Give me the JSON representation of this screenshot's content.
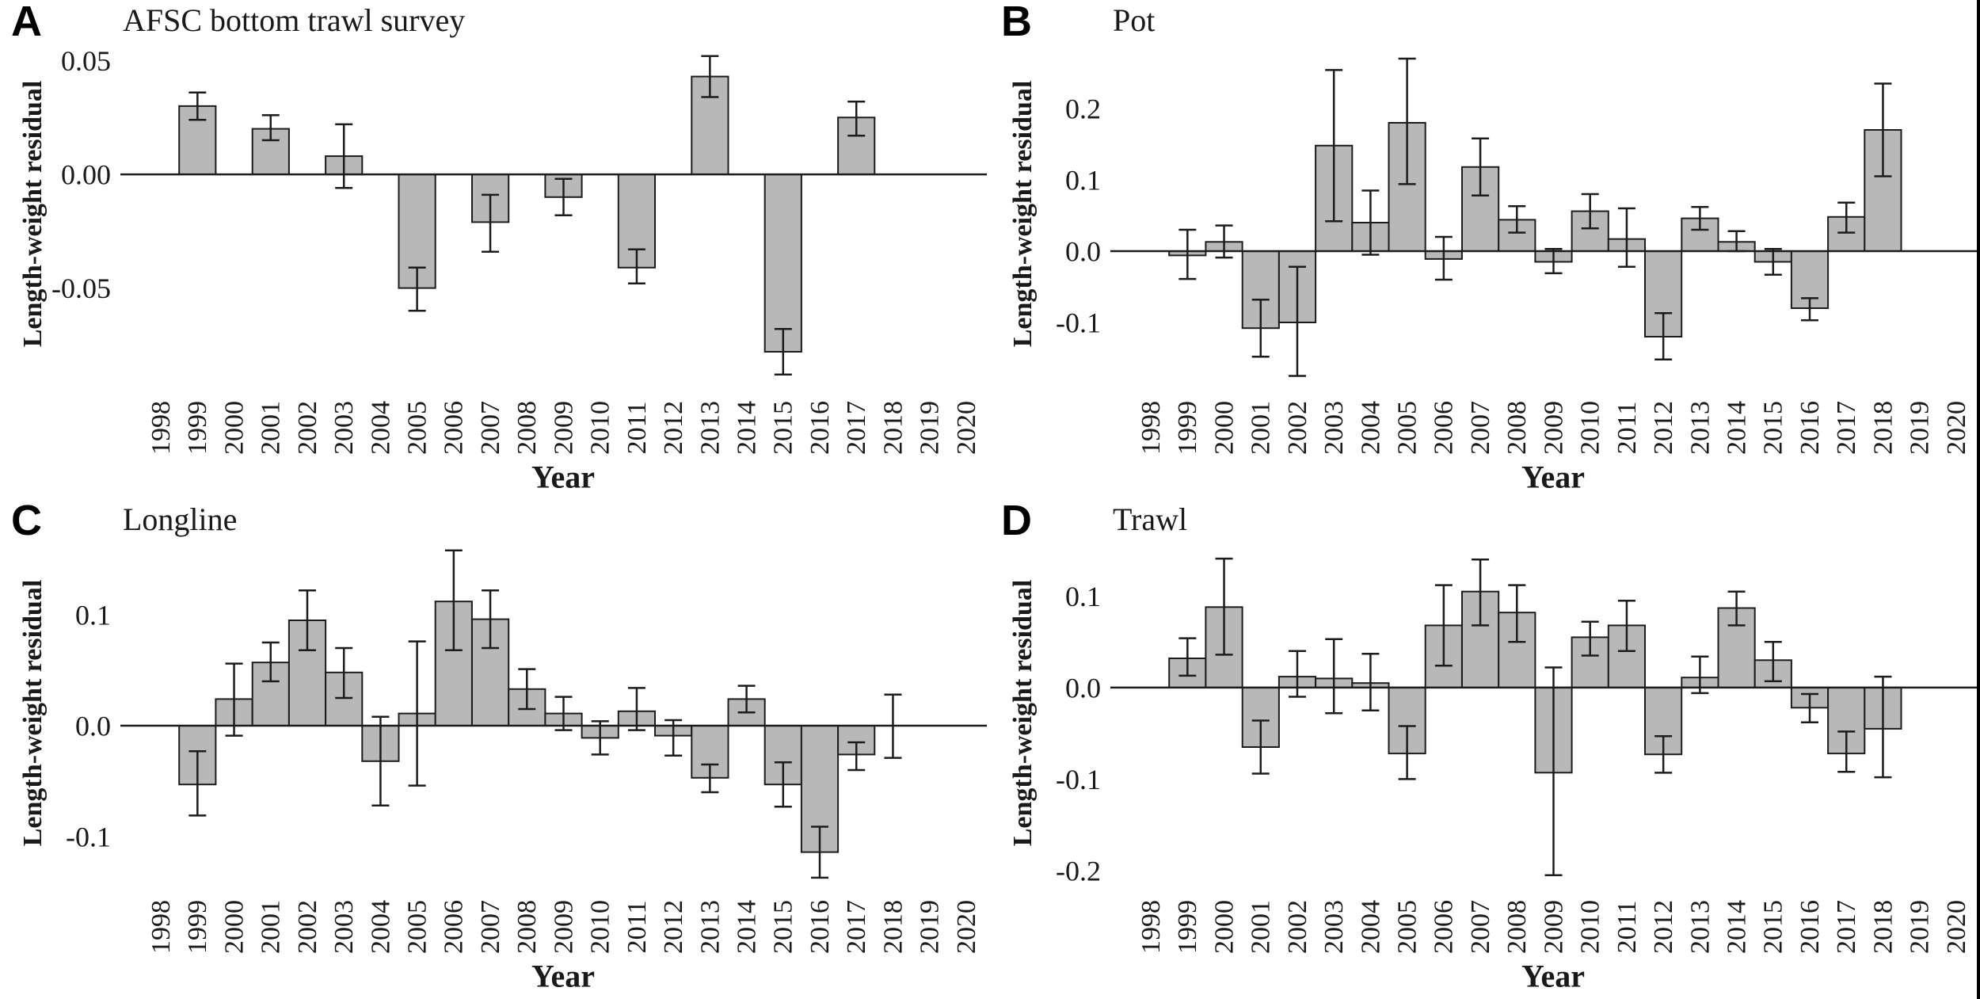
{
  "figure": {
    "background": "#ffffff",
    "bar_fill": "#b8b8b8",
    "bar_stroke": "#1c1c1c",
    "axis_color": "#1c1c1c",
    "text_color": "#1a1a1a"
  },
  "chart_data": [
    {
      "type": "bar",
      "panel_letter": "A",
      "title": "AFSC bottom trawl survey",
      "xlabel": "Year",
      "ylabel": "Length-weight residual",
      "legend": null,
      "grid": false,
      "categories": [
        1998,
        1999,
        2000,
        2001,
        2002,
        2003,
        2004,
        2005,
        2006,
        2007,
        2008,
        2009,
        2010,
        2011,
        2012,
        2013,
        2014,
        2015,
        2016,
        2017,
        2018,
        2019,
        2020
      ],
      "values": [
        null,
        0.03,
        null,
        0.02,
        null,
        0.008,
        null,
        -0.05,
        null,
        -0.021,
        null,
        -0.01,
        null,
        -0.041,
        null,
        0.043,
        null,
        -0.078,
        null,
        0.025,
        null,
        null,
        null
      ],
      "error_low": [
        null,
        0.024,
        null,
        0.015,
        null,
        -0.006,
        null,
        -0.06,
        null,
        -0.034,
        null,
        -0.018,
        null,
        -0.048,
        null,
        0.034,
        null,
        -0.088,
        null,
        0.017,
        null,
        null,
        null
      ],
      "error_high": [
        null,
        0.036,
        null,
        0.026,
        null,
        0.022,
        null,
        -0.041,
        null,
        -0.009,
        null,
        -0.002,
        null,
        -0.033,
        null,
        0.052,
        null,
        -0.068,
        null,
        0.032,
        null,
        null,
        null
      ],
      "yticks": [
        {
          "v": 0.05,
          "label": "0.05"
        },
        {
          "v": 0,
          "label": "0.00"
        },
        {
          "v": -0.05,
          "label": "-0.05"
        }
      ],
      "ylim": [
        -0.0923,
        0.0575
      ]
    },
    {
      "type": "bar",
      "panel_letter": "B",
      "title": "Pot",
      "xlabel": "Year",
      "ylabel": "Length-weight residual",
      "legend": null,
      "grid": false,
      "categories": [
        1998,
        1999,
        2000,
        2001,
        2002,
        2003,
        2004,
        2005,
        2006,
        2007,
        2008,
        2009,
        2010,
        2011,
        2012,
        2013,
        2014,
        2015,
        2016,
        2017,
        2018,
        2019,
        2020
      ],
      "values": [
        null,
        -0.006,
        0.013,
        -0.108,
        -0.1,
        0.148,
        0.04,
        0.18,
        -0.011,
        0.118,
        0.044,
        -0.015,
        0.056,
        0.017,
        -0.12,
        0.046,
        0.013,
        -0.015,
        -0.08,
        0.048,
        0.17,
        null,
        null
      ],
      "error_low": [
        null,
        -0.039,
        -0.009,
        -0.148,
        -0.175,
        0.042,
        -0.005,
        0.094,
        -0.04,
        0.078,
        0.026,
        -0.031,
        0.032,
        -0.022,
        -0.152,
        0.03,
        0.0,
        -0.033,
        -0.097,
        0.026,
        0.105,
        null,
        null
      ],
      "error_high": [
        null,
        0.03,
        0.036,
        -0.068,
        -0.022,
        0.254,
        0.085,
        0.27,
        0.02,
        0.158,
        0.063,
        0.003,
        0.08,
        0.06,
        -0.087,
        0.062,
        0.028,
        0.003,
        -0.066,
        0.068,
        0.235,
        null,
        null
      ],
      "yticks": [
        {
          "v": 0.2,
          "label": "0.2"
        },
        {
          "v": 0.1,
          "label": "0.1"
        },
        {
          "v": 0,
          "label": "0.0"
        },
        {
          "v": -0.1,
          "label": "-0.1"
        }
      ],
      "ylim": [
        -0.1867,
        0.2911
      ]
    },
    {
      "type": "bar",
      "panel_letter": "C",
      "title": "Longline",
      "xlabel": "Year",
      "ylabel": "Length-weight residual",
      "legend": null,
      "grid": false,
      "categories": [
        1998,
        1999,
        2000,
        2001,
        2002,
        2003,
        2004,
        2005,
        2006,
        2007,
        2008,
        2009,
        2010,
        2011,
        2012,
        2013,
        2014,
        2015,
        2016,
        2017,
        2018,
        2019,
        2020
      ],
      "values": [
        null,
        -0.053,
        0.024,
        0.057,
        0.095,
        0.048,
        -0.032,
        0.011,
        0.112,
        0.096,
        0.033,
        0.011,
        -0.011,
        0.013,
        -0.009,
        -0.047,
        0.024,
        -0.053,
        -0.114,
        -0.026,
        0.0,
        null,
        null
      ],
      "error_low": [
        null,
        -0.081,
        -0.009,
        0.04,
        0.068,
        0.025,
        -0.072,
        -0.054,
        0.068,
        0.07,
        0.015,
        -0.004,
        -0.026,
        -0.004,
        -0.027,
        -0.06,
        0.012,
        -0.073,
        -0.137,
        -0.04,
        -0.029,
        null,
        null
      ],
      "error_high": [
        null,
        -0.023,
        0.056,
        0.075,
        0.122,
        0.07,
        0.008,
        0.076,
        0.158,
        0.122,
        0.051,
        0.026,
        0.004,
        0.034,
        0.005,
        -0.035,
        0.036,
        -0.033,
        -0.091,
        -0.015,
        0.028,
        null,
        null
      ],
      "yticks": [
        {
          "v": 0.1,
          "label": "0.1"
        },
        {
          "v": 0,
          "label": "0.0"
        },
        {
          "v": -0.1,
          "label": "-0.1"
        }
      ],
      "ylim": [
        -0.1421,
        0.165
      ]
    },
    {
      "type": "bar",
      "panel_letter": "D",
      "title": "Trawl",
      "xlabel": "Year",
      "ylabel": "Length-weight residual",
      "legend": null,
      "grid": false,
      "categories": [
        1998,
        1999,
        2000,
        2001,
        2002,
        2003,
        2004,
        2005,
        2006,
        2007,
        2008,
        2009,
        2010,
        2011,
        2012,
        2013,
        2014,
        2015,
        2016,
        2017,
        2018,
        2019,
        2020
      ],
      "values": [
        null,
        0.032,
        0.088,
        -0.065,
        0.012,
        0.01,
        0.005,
        -0.072,
        0.068,
        0.105,
        0.082,
        -0.093,
        0.055,
        0.068,
        -0.073,
        0.011,
        0.087,
        0.03,
        -0.022,
        -0.072,
        -0.045,
        null,
        null
      ],
      "error_low": [
        null,
        0.013,
        0.036,
        -0.094,
        -0.01,
        -0.028,
        -0.025,
        -0.1,
        0.024,
        0.068,
        0.05,
        -0.205,
        0.035,
        0.04,
        -0.093,
        -0.006,
        0.068,
        0.007,
        -0.038,
        -0.092,
        -0.098,
        null,
        null
      ],
      "error_high": [
        null,
        0.054,
        0.141,
        -0.036,
        0.04,
        0.053,
        0.037,
        -0.042,
        0.112,
        0.14,
        0.112,
        0.022,
        0.072,
        0.095,
        -0.053,
        0.034,
        0.105,
        0.05,
        -0.007,
        -0.048,
        0.012,
        null,
        null
      ],
      "yticks": [
        {
          "v": 0.1,
          "label": "0.1"
        },
        {
          "v": 0,
          "label": "0.0"
        },
        {
          "v": -0.1,
          "label": "-0.1"
        },
        {
          "v": -0.2,
          "label": "-0.2"
        }
      ],
      "ylim": [
        -0.2139,
        0.1584
      ]
    }
  ]
}
